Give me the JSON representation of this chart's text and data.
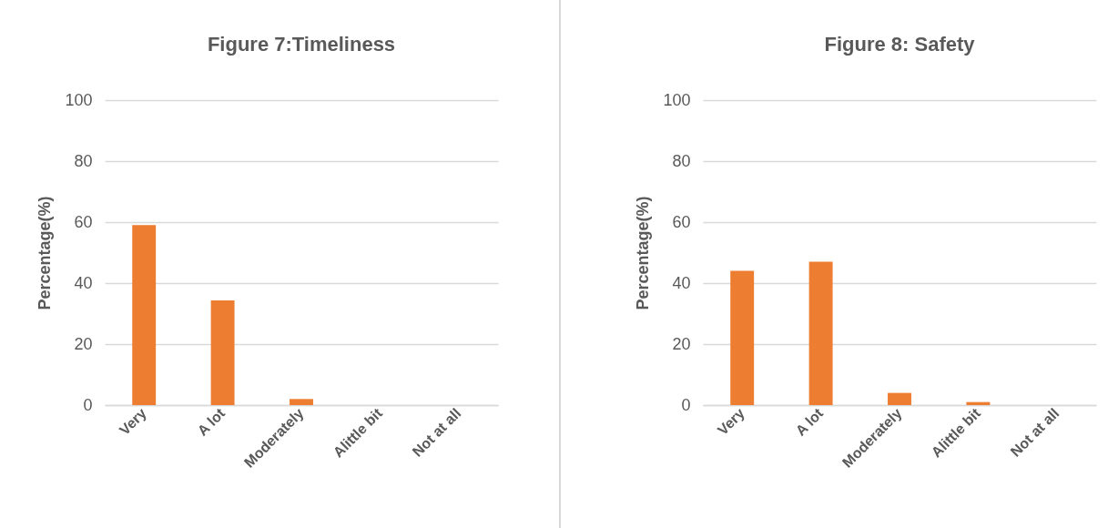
{
  "chart_data": [
    {
      "type": "bar",
      "title": "Figure 7:Timeliness",
      "ylabel": "Percentage(%)",
      "categories": [
        "Very",
        "A lot",
        "Moderately",
        "Alittle bit",
        "Not at all"
      ],
      "values": [
        59,
        34.3,
        2,
        0,
        0
      ],
      "color": "#ed7d31",
      "ylim": [
        0,
        100
      ],
      "yticks": [
        0,
        20,
        40,
        60,
        80,
        100
      ],
      "grid": "y"
    },
    {
      "type": "bar",
      "title": "Figure 8: Safety",
      "ylabel": "Percentage(%)",
      "categories": [
        "Very",
        "A lot",
        "Moderately",
        "Alittle bit",
        "Not at all"
      ],
      "values": [
        44,
        47,
        4,
        1,
        0
      ],
      "color": "#ed7d31",
      "ylim": [
        0,
        100
      ],
      "yticks": [
        0,
        20,
        40,
        60,
        80,
        100
      ],
      "grid": "y"
    }
  ]
}
